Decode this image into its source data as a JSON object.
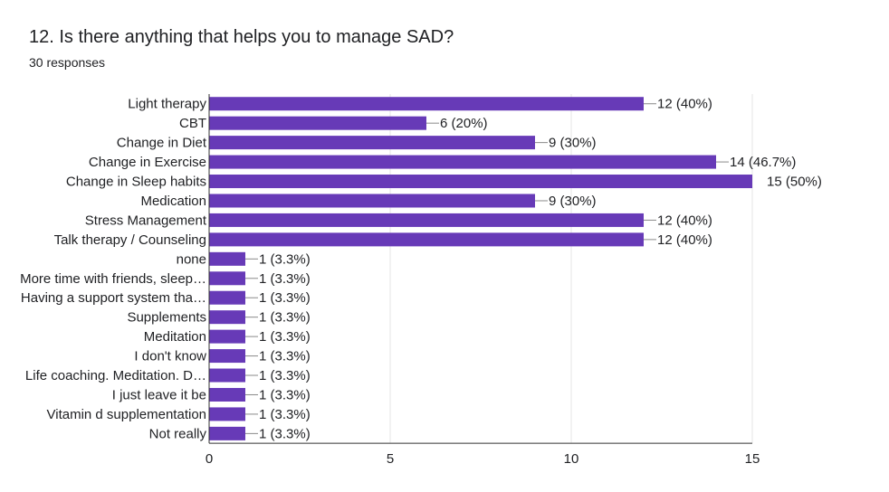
{
  "question": {
    "title": "12. Is there anything that helps you to manage SAD?",
    "responses": "30 responses"
  },
  "colors": {
    "bar": "#673ab7",
    "grid": "#e6e6e6",
    "axis": "#333333",
    "text": "#202124"
  },
  "chart_data": {
    "type": "bar",
    "orientation": "horizontal",
    "categories": [
      "Light therapy",
      "CBT",
      "Change in Diet",
      "Change in Exercise",
      "Change in Sleep habits",
      "Medication",
      "Stress Management",
      "Talk therapy / Counseling",
      "none",
      "More time with friends, sleep…",
      "Having a support system tha…",
      "Supplements",
      "Meditation",
      "I don't know",
      "Life coaching. Meditation. D…",
      "I just leave it be",
      "Vitamin d supplementation",
      "Not really"
    ],
    "values": [
      12,
      6,
      9,
      14,
      15,
      9,
      12,
      12,
      1,
      1,
      1,
      1,
      1,
      1,
      1,
      1,
      1,
      1
    ],
    "data_labels": [
      "12 (40%)",
      "6 (20%)",
      "9 (30%)",
      "14 (46.7%)",
      "15 (50%)",
      "9 (30%)",
      "12 (40%)",
      "12 (40%)",
      "1 (3.3%)",
      "1 (3.3%)",
      "1 (3.3%)",
      "1 (3.3%)",
      "1 (3.3%)",
      "1 (3.3%)",
      "1 (3.3%)",
      "1 (3.3%)",
      "1 (3.3%)",
      "1 (3.3%)"
    ],
    "x_ticks": [
      0,
      5,
      10,
      15
    ],
    "xlim": [
      0,
      15
    ],
    "grid": true,
    "legend": "none"
  }
}
